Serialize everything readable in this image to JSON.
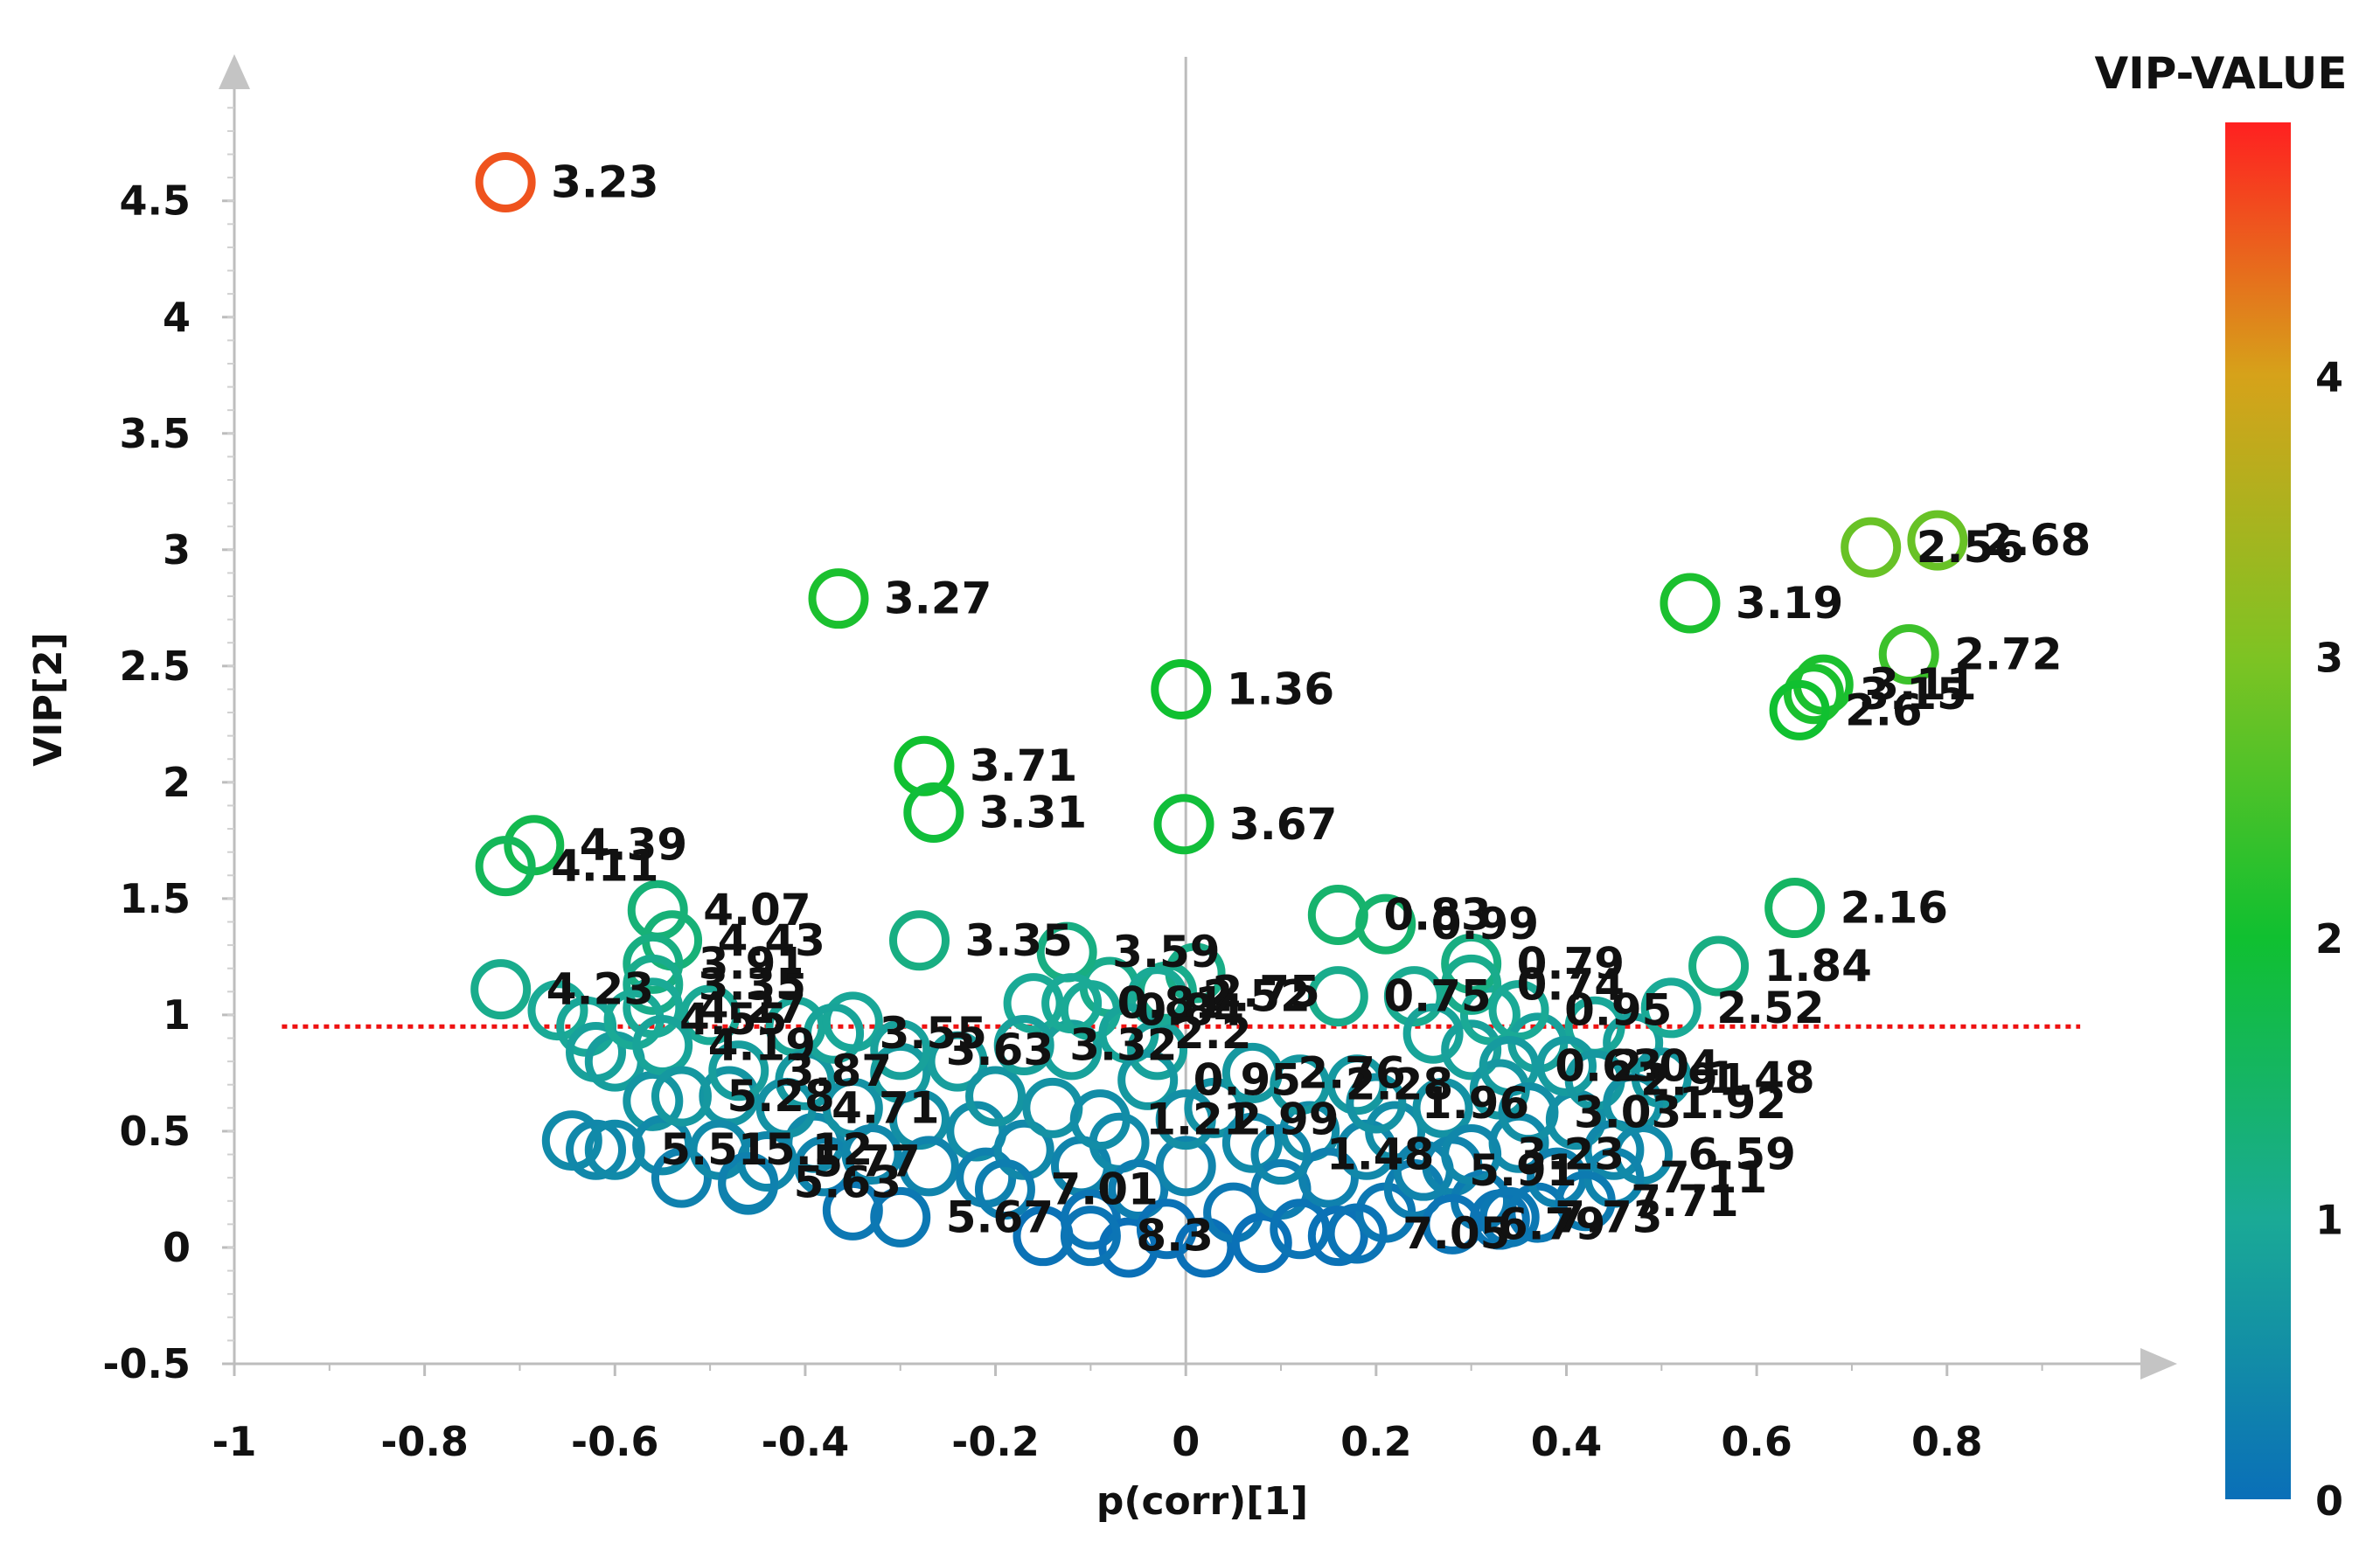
{
  "chart_data": {
    "type": "scatter",
    "title": "",
    "xlabel": "p(corr)[1]",
    "ylabel": "VIP[2]",
    "xlim": [
      -1,
      0.95
    ],
    "ylim": [
      -0.5,
      4.95
    ],
    "x_ticks": [
      "-1",
      "-0.8",
      "-0.6",
      "-0.4",
      "-0.2",
      "0",
      "0.2",
      "0.4",
      "0.6",
      "0.8"
    ],
    "y_ticks": [
      "-0.5",
      "0",
      "0.5",
      "1",
      "1.5",
      "2",
      "2.5",
      "3",
      "3.5",
      "4",
      "4.5"
    ],
    "x_tick_values": [
      -1,
      -0.8,
      -0.6,
      -0.4,
      -0.2,
      0,
      0.2,
      0.4,
      0.6,
      0.8
    ],
    "y_tick_values": [
      -0.5,
      0,
      0.5,
      1,
      1.5,
      2,
      2.5,
      3,
      3.5,
      4,
      4.5
    ],
    "threshold": {
      "y": 0.95,
      "color": "#ee1111",
      "style": "dotted"
    },
    "colorbar": {
      "title": "VIP-VALUE",
      "min": 0,
      "max": 4.9,
      "ticks": [
        "0",
        "1",
        "2",
        "3",
        "4"
      ],
      "tick_values": [
        0,
        1,
        2,
        3,
        4
      ],
      "stops": [
        {
          "v": 0,
          "color": "#0a6fb8"
        },
        {
          "v": 1,
          "color": "#1aaa96"
        },
        {
          "v": 2,
          "color": "#10c030"
        },
        {
          "v": 3,
          "color": "#7ec323"
        },
        {
          "v": 4,
          "color": "#d6a21a"
        },
        {
          "v": 4.9,
          "color": "#ff2020"
        }
      ]
    },
    "labeled_points": [
      {
        "x": -0.715,
        "y": 4.58,
        "vip": 4.55,
        "label": "3.23"
      },
      {
        "x": -0.365,
        "y": 2.79,
        "vip": 2.1,
        "label": "3.27"
      },
      {
        "x": -0.275,
        "y": 2.07,
        "vip": 2.0,
        "label": "3.71"
      },
      {
        "x": -0.265,
        "y": 1.87,
        "vip": 1.9,
        "label": "3.31"
      },
      {
        "x": -0.005,
        "y": 2.4,
        "vip": 2.0,
        "label": "1.36"
      },
      {
        "x": -0.002,
        "y": 1.82,
        "vip": 1.9,
        "label": "3.67"
      },
      {
        "x": -0.685,
        "y": 1.73,
        "vip": 1.7,
        "label": "4.39"
      },
      {
        "x": -0.715,
        "y": 1.64,
        "vip": 1.6,
        "label": "4.11"
      },
      {
        "x": -0.555,
        "y": 1.45,
        "vip": 1.3,
        "label": "4.07"
      },
      {
        "x": -0.54,
        "y": 1.32,
        "vip": 1.3,
        "label": "4.43"
      },
      {
        "x": -0.56,
        "y": 1.22,
        "vip": 1.2,
        "label": "3.91"
      },
      {
        "x": -0.56,
        "y": 1.13,
        "vip": 1.1,
        "label": "3.35"
      },
      {
        "x": -0.72,
        "y": 1.11,
        "vip": 1.1,
        "label": "4.23"
      },
      {
        "x": -0.56,
        "y": 1.03,
        "vip": 1.0,
        "label": "4.27"
      },
      {
        "x": -0.58,
        "y": 0.98,
        "vip": 1.0,
        "label": "4.55"
      },
      {
        "x": -0.28,
        "y": 1.32,
        "vip": 1.2,
        "label": "3.35"
      },
      {
        "x": -0.125,
        "y": 1.27,
        "vip": 1.2,
        "label": "3.59"
      },
      {
        "x": -0.02,
        "y": 1.1,
        "vip": 1.1,
        "label": "2.75"
      },
      {
        "x": 0.16,
        "y": 1.43,
        "vip": 1.4,
        "label": "0.83"
      },
      {
        "x": 0.21,
        "y": 1.39,
        "vip": 1.4,
        "label": "0.99"
      },
      {
        "x": 0.16,
        "y": 1.08,
        "vip": 1.1,
        "label": "0.75"
      },
      {
        "x": 0.3,
        "y": 1.22,
        "vip": 1.2,
        "label": "0.79"
      },
      {
        "x": 0.3,
        "y": 1.13,
        "vip": 1.1,
        "label": "0.74"
      },
      {
        "x": 0.35,
        "y": 1.02,
        "vip": 1.0,
        "label": "0.95"
      },
      {
        "x": 0.53,
        "y": 2.77,
        "vip": 2.1,
        "label": "3.19"
      },
      {
        "x": 0.79,
        "y": 3.04,
        "vip": 2.8,
        "label": "2.68"
      },
      {
        "x": 0.72,
        "y": 3.01,
        "vip": 2.8,
        "label": "2.56"
      },
      {
        "x": 0.76,
        "y": 2.55,
        "vip": 2.4,
        "label": "2.72"
      },
      {
        "x": 0.67,
        "y": 2.42,
        "vip": 2.1,
        "label": "3.11"
      },
      {
        "x": 0.66,
        "y": 2.38,
        "vip": 2.1,
        "label": "3.15"
      },
      {
        "x": 0.645,
        "y": 2.31,
        "vip": 2.0,
        "label": "2.6"
      },
      {
        "x": 0.64,
        "y": 1.46,
        "vip": 1.5,
        "label": "2.16"
      },
      {
        "x": 0.56,
        "y": 1.21,
        "vip": 1.2,
        "label": "1.84"
      },
      {
        "x": 0.51,
        "y": 1.03,
        "vip": 1.0,
        "label": "2.52"
      },
      {
        "x": -0.03,
        "y": 1.08,
        "vip": 1.0,
        "label": "2.52"
      },
      {
        "x": -0.12,
        "y": 1.05,
        "vip": 1.0,
        "label": "0.81"
      },
      {
        "x": -0.1,
        "y": 1.02,
        "vip": 1.0,
        "label": "0.84"
      },
      {
        "x": -0.06,
        "y": 0.92,
        "vip": 0.9,
        "label": "2.2"
      },
      {
        "x": -0.55,
        "y": 0.87,
        "vip": 0.9,
        "label": "4.19"
      },
      {
        "x": -0.47,
        "y": 0.76,
        "vip": 0.8,
        "label": "3.87"
      },
      {
        "x": -0.37,
        "y": 0.92,
        "vip": 0.9,
        "label": "3.55"
      },
      {
        "x": -0.3,
        "y": 0.85,
        "vip": 0.85,
        "label": "3.63"
      },
      {
        "x": -0.17,
        "y": 0.87,
        "vip": 0.85,
        "label": "3.32"
      },
      {
        "x": -0.53,
        "y": 0.65,
        "vip": 0.7,
        "label": "5.28"
      },
      {
        "x": -0.42,
        "y": 0.6,
        "vip": 0.6,
        "label": "4.71"
      },
      {
        "x": -0.04,
        "y": 0.72,
        "vip": 0.7,
        "label": "0.95"
      },
      {
        "x": 0.07,
        "y": 0.75,
        "vip": 0.7,
        "label": "2.76"
      },
      {
        "x": 0.12,
        "y": 0.7,
        "vip": 0.7,
        "label": "2.28"
      },
      {
        "x": -0.09,
        "y": 0.55,
        "vip": 0.5,
        "label": "1.21"
      },
      {
        "x": 0.0,
        "y": 0.55,
        "vip": 0.55,
        "label": "2.99"
      },
      {
        "x": 0.2,
        "y": 0.62,
        "vip": 0.6,
        "label": "1.96"
      },
      {
        "x": 0.34,
        "y": 0.78,
        "vip": 0.75,
        "label": "0.63"
      },
      {
        "x": 0.4,
        "y": 0.78,
        "vip": 0.75,
        "label": "2.04"
      },
      {
        "x": 0.43,
        "y": 0.72,
        "vip": 0.7,
        "label": "2.91"
      },
      {
        "x": 0.5,
        "y": 0.73,
        "vip": 0.7,
        "label": "1.48"
      },
      {
        "x": 0.47,
        "y": 0.62,
        "vip": 0.6,
        "label": "1.92"
      },
      {
        "x": 0.36,
        "y": 0.58,
        "vip": 0.55,
        "label": "3.03"
      },
      {
        "x": 0.48,
        "y": 0.4,
        "vip": 0.45,
        "label": "6.59"
      },
      {
        "x": 0.45,
        "y": 0.3,
        "vip": 0.35,
        "label": "7.11"
      },
      {
        "x": 0.42,
        "y": 0.2,
        "vip": 0.2,
        "label": "7.71"
      },
      {
        "x": 0.34,
        "y": 0.13,
        "vip": 0.15,
        "label": "7.73"
      },
      {
        "x": 0.1,
        "y": 0.4,
        "vip": 0.4,
        "label": "1.48"
      },
      {
        "x": 0.25,
        "y": 0.33,
        "vip": 0.35,
        "label": "5.91"
      },
      {
        "x": 0.3,
        "y": 0.4,
        "vip": 0.4,
        "label": "3.23"
      },
      {
        "x": -0.6,
        "y": 0.42,
        "vip": 0.45,
        "label": "5.51"
      },
      {
        "x": -0.49,
        "y": 0.42,
        "vip": 0.45,
        "label": "5.12"
      },
      {
        "x": -0.44,
        "y": 0.37,
        "vip": 0.4,
        "label": "5.77"
      },
      {
        "x": -0.46,
        "y": 0.28,
        "vip": 0.3,
        "label": "5.63"
      },
      {
        "x": -0.3,
        "y": 0.13,
        "vip": 0.15,
        "label": "5.67"
      },
      {
        "x": -0.1,
        "y": 0.05,
        "vip": 0.1,
        "label": "8.3"
      },
      {
        "x": -0.19,
        "y": 0.25,
        "vip": 0.25,
        "label": "7.01"
      },
      {
        "x": 0.18,
        "y": 0.06,
        "vip": 0.08,
        "label": "7.05"
      },
      {
        "x": 0.28,
        "y": 0.1,
        "vip": 0.1,
        "label": "6.79"
      }
    ],
    "unlabeled_points": [
      {
        "x": -0.645,
        "y": 0.46,
        "vip": 0.45
      },
      {
        "x": -0.62,
        "y": 0.42,
        "vip": 0.42
      },
      {
        "x": -0.66,
        "y": 1.02,
        "vip": 1.0
      },
      {
        "x": -0.63,
        "y": 0.95,
        "vip": 0.95
      },
      {
        "x": -0.62,
        "y": 0.84,
        "vip": 0.85
      },
      {
        "x": -0.6,
        "y": 0.8,
        "vip": 0.8
      },
      {
        "x": -0.56,
        "y": 0.63,
        "vip": 0.65
      },
      {
        "x": -0.55,
        "y": 0.44,
        "vip": 0.45
      },
      {
        "x": -0.53,
        "y": 0.3,
        "vip": 0.3
      },
      {
        "x": -0.5,
        "y": 1.0,
        "vip": 1.0
      },
      {
        "x": -0.48,
        "y": 0.65,
        "vip": 0.65
      },
      {
        "x": -0.46,
        "y": 0.27,
        "vip": 0.3
      },
      {
        "x": -0.41,
        "y": 0.95,
        "vip": 0.95
      },
      {
        "x": -0.4,
        "y": 0.72,
        "vip": 0.7
      },
      {
        "x": -0.39,
        "y": 0.45,
        "vip": 0.45
      },
      {
        "x": -0.38,
        "y": 0.35,
        "vip": 0.35
      },
      {
        "x": -0.35,
        "y": 0.97,
        "vip": 0.95
      },
      {
        "x": -0.35,
        "y": 0.6,
        "vip": 0.6
      },
      {
        "x": -0.35,
        "y": 0.16,
        "vip": 0.15
      },
      {
        "x": -0.33,
        "y": 0.4,
        "vip": 0.4
      },
      {
        "x": -0.3,
        "y": 0.75,
        "vip": 0.75
      },
      {
        "x": -0.28,
        "y": 0.55,
        "vip": 0.55
      },
      {
        "x": -0.27,
        "y": 0.35,
        "vip": 0.35
      },
      {
        "x": -0.24,
        "y": 0.8,
        "vip": 0.8
      },
      {
        "x": -0.22,
        "y": 0.5,
        "vip": 0.5
      },
      {
        "x": -0.21,
        "y": 0.3,
        "vip": 0.3
      },
      {
        "x": -0.2,
        "y": 0.65,
        "vip": 0.65
      },
      {
        "x": -0.17,
        "y": 0.42,
        "vip": 0.42
      },
      {
        "x": -0.16,
        "y": 1.05,
        "vip": 1.0
      },
      {
        "x": -0.15,
        "y": 0.05,
        "vip": 0.05
      },
      {
        "x": -0.14,
        "y": 0.6,
        "vip": 0.6
      },
      {
        "x": -0.12,
        "y": 0.85,
        "vip": 0.85
      },
      {
        "x": -0.11,
        "y": 0.35,
        "vip": 0.35
      },
      {
        "x": -0.1,
        "y": 0.12,
        "vip": 0.1
      },
      {
        "x": -0.08,
        "y": 1.12,
        "vip": 1.1
      },
      {
        "x": -0.07,
        "y": 0.45,
        "vip": 0.45
      },
      {
        "x": -0.06,
        "y": 0.0,
        "vip": 0.02
      },
      {
        "x": -0.05,
        "y": 0.25,
        "vip": 0.25
      },
      {
        "x": -0.03,
        "y": 0.85,
        "vip": 0.85
      },
      {
        "x": -0.02,
        "y": 0.08,
        "vip": 0.05
      },
      {
        "x": 0.0,
        "y": 0.35,
        "vip": 0.35
      },
      {
        "x": 0.01,
        "y": 1.18,
        "vip": 1.15
      },
      {
        "x": 0.02,
        "y": 0.0,
        "vip": 0.02
      },
      {
        "x": 0.03,
        "y": 0.6,
        "vip": 0.6
      },
      {
        "x": 0.05,
        "y": 0.15,
        "vip": 0.15
      },
      {
        "x": 0.07,
        "y": 0.45,
        "vip": 0.45
      },
      {
        "x": 0.08,
        "y": 0.02,
        "vip": 0.03
      },
      {
        "x": 0.1,
        "y": 0.25,
        "vip": 0.25
      },
      {
        "x": 0.12,
        "y": 0.08,
        "vip": 0.08
      },
      {
        "x": 0.13,
        "y": 0.5,
        "vip": 0.5
      },
      {
        "x": 0.15,
        "y": 0.3,
        "vip": 0.3
      },
      {
        "x": 0.16,
        "y": 0.05,
        "vip": 0.05
      },
      {
        "x": 0.18,
        "y": 0.7,
        "vip": 0.7
      },
      {
        "x": 0.19,
        "y": 0.42,
        "vip": 0.42
      },
      {
        "x": 0.21,
        "y": 0.15,
        "vip": 0.15
      },
      {
        "x": 0.22,
        "y": 0.5,
        "vip": 0.5
      },
      {
        "x": 0.24,
        "y": 1.08,
        "vip": 1.05
      },
      {
        "x": 0.24,
        "y": 0.25,
        "vip": 0.25
      },
      {
        "x": 0.26,
        "y": 0.92,
        "vip": 0.9
      },
      {
        "x": 0.27,
        "y": 0.6,
        "vip": 0.6
      },
      {
        "x": 0.28,
        "y": 0.35,
        "vip": 0.35
      },
      {
        "x": 0.3,
        "y": 0.85,
        "vip": 0.85
      },
      {
        "x": 0.31,
        "y": 0.2,
        "vip": 0.2
      },
      {
        "x": 0.32,
        "y": 1.0,
        "vip": 1.0
      },
      {
        "x": 0.33,
        "y": 0.68,
        "vip": 0.68
      },
      {
        "x": 0.33,
        "y": 0.12,
        "vip": 0.12
      },
      {
        "x": 0.35,
        "y": 0.45,
        "vip": 0.45
      },
      {
        "x": 0.37,
        "y": 0.88,
        "vip": 0.85
      },
      {
        "x": 0.37,
        "y": 0.15,
        "vip": 0.15
      },
      {
        "x": 0.39,
        "y": 0.3,
        "vip": 0.3
      },
      {
        "x": 0.41,
        "y": 0.55,
        "vip": 0.55
      },
      {
        "x": 0.43,
        "y": 0.95,
        "vip": 0.95
      },
      {
        "x": 0.45,
        "y": 0.42,
        "vip": 0.42
      },
      {
        "x": 0.47,
        "y": 0.88,
        "vip": 0.85
      }
    ]
  }
}
